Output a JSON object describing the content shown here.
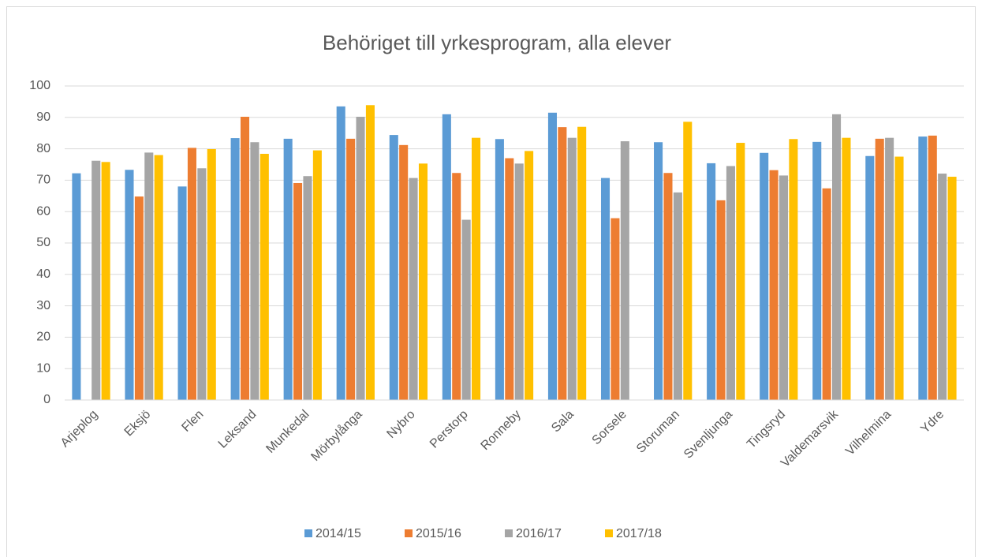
{
  "chart_data": {
    "type": "bar",
    "title": "Behöriget till yrkesprogram, alla elever",
    "categories": [
      "Arjeplog",
      "Eksjö",
      "Flen",
      "Leksand",
      "Munkedal",
      "Mörbylånga",
      "Nybro",
      "Perstorp",
      "Ronneby",
      "Sala",
      "Sorsele",
      "Storuman",
      "Svenljunga",
      "Tingsryd",
      "Valdemarsvik",
      "Vilhelmina",
      "Ydre"
    ],
    "series": [
      {
        "name": "2014/15",
        "color": "#5b9bd5",
        "values": [
          72.2,
          73.3,
          68.0,
          83.4,
          83.2,
          93.5,
          84.4,
          91.0,
          83.1,
          91.5,
          70.7,
          82.1,
          75.4,
          78.7,
          82.2,
          77.7,
          83.9
        ]
      },
      {
        "name": "2015/16",
        "color": "#ed7d31",
        "values": [
          null,
          64.8,
          80.3,
          90.2,
          69.1,
          83.2,
          81.2,
          72.3,
          77.0,
          86.9,
          57.9,
          72.3,
          63.6,
          73.2,
          67.4,
          83.2,
          84.2
        ]
      },
      {
        "name": "2016/17",
        "color": "#a5a5a5",
        "values": [
          76.2,
          78.8,
          73.8,
          82.1,
          71.3,
          90.2,
          70.7,
          57.4,
          75.3,
          83.5,
          82.4,
          66.1,
          74.5,
          71.5,
          91.0,
          83.5,
          72.1
        ]
      },
      {
        "name": "2017/18",
        "color": "#ffc000",
        "values": [
          75.8,
          78.0,
          79.9,
          78.4,
          79.5,
          93.9,
          75.3,
          83.5,
          79.3,
          87.0,
          null,
          88.6,
          81.9,
          83.1,
          83.5,
          77.5,
          71.1
        ]
      }
    ],
    "ylim": [
      0,
      100
    ],
    "yticks": [
      0,
      10,
      20,
      30,
      40,
      50,
      60,
      70,
      80,
      90,
      100
    ],
    "grid": true,
    "legend": "bottom"
  }
}
